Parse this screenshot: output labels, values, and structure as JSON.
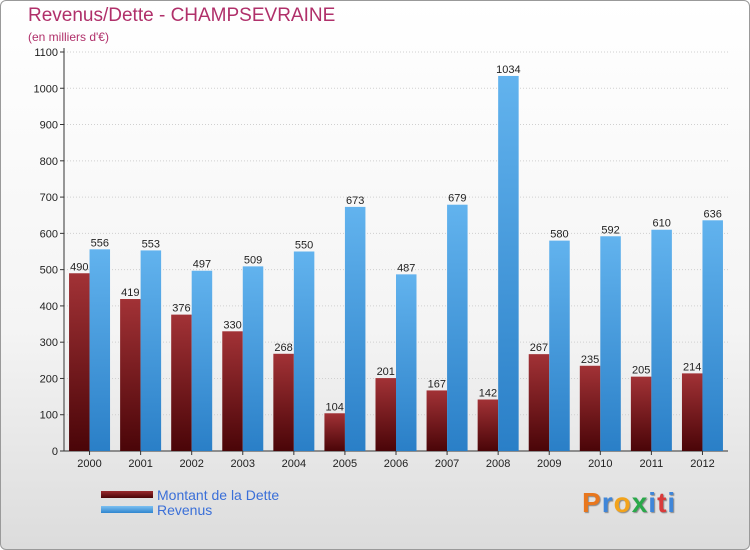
{
  "chart_data": {
    "type": "bar",
    "title": "Revenus/Dette - CHAMPSEVRAINE",
    "subtitle": "(en milliers d'€)",
    "categories": [
      "2000",
      "2001",
      "2002",
      "2003",
      "2004",
      "2005",
      "2006",
      "2007",
      "2008",
      "2009",
      "2010",
      "2011",
      "2012"
    ],
    "series": [
      {
        "name": "Montant de la Dette",
        "color": "#6e0f14",
        "values": [
          490,
          419,
          376,
          330,
          268,
          104,
          201,
          167,
          142,
          267,
          235,
          205,
          214
        ]
      },
      {
        "name": "Revenus",
        "color": "#4aa3e6",
        "values": [
          556,
          553,
          497,
          509,
          550,
          673,
          487,
          679,
          1034,
          580,
          592,
          610,
          636
        ]
      }
    ],
    "ylim": [
      0,
      1100
    ],
    "yticks": [
      0,
      100,
      200,
      300,
      400,
      500,
      600,
      700,
      800,
      900,
      1000,
      1100
    ],
    "grid": true,
    "legend_position": "bottom-left"
  },
  "logo": {
    "text": "Proxiti",
    "colors": [
      "#e8771e",
      "#3f86d9",
      "#f2a31b",
      "#2aa84a",
      "#3f86d9",
      "#d93b3b",
      "#3f86d9"
    ]
  }
}
